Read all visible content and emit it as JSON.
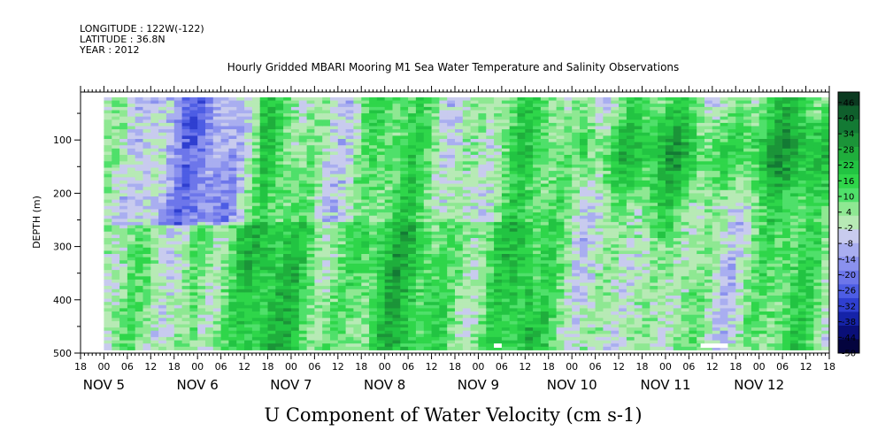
{
  "header": {
    "longitude": "LONGITUDE : 122W(-122)",
    "latitude": "LATITUDE : 36.8N",
    "year": "YEAR : 2012"
  },
  "chart_data": {
    "type": "heatmap",
    "title": "Hourly Gridded MBARI Mooring M1 Sea Water Temperature and Salinity Observations",
    "xlabel": "U Component of Water Velocity (cm s-1)",
    "ylabel": "DEPTH (m)",
    "ylim": [
      500,
      10
    ],
    "y_ticks": [
      100,
      200,
      300,
      400,
      500
    ],
    "x_range_hours": [
      -6,
      186
    ],
    "x_tick_hours": [
      "18",
      "00",
      "06",
      "12",
      "18",
      "00",
      "06",
      "12",
      "18",
      "00",
      "06",
      "12",
      "18",
      "00",
      "06",
      "12",
      "18",
      "00",
      "06",
      "12",
      "18",
      "00",
      "06",
      "12",
      "18",
      "00",
      "06",
      "12",
      "18",
      "00",
      "06",
      "12",
      "18"
    ],
    "x_day_labels": [
      "NOV 5",
      "NOV 6",
      "NOV 7",
      "NOV 8",
      "NOV 9",
      "NOV 10",
      "NOV 11",
      "NOV 12"
    ],
    "data_depth_range": [
      20,
      490
    ],
    "colorbar": {
      "min": -50,
      "max": 50,
      "labels": [
        "46",
        "40",
        "34",
        "28",
        "22",
        "16",
        "10",
        "4",
        "-2",
        "-8",
        "-14",
        "-20",
        "-26",
        "-32",
        "-38",
        "-44",
        "-50"
      ],
      "colors": [
        "#0b3a20",
        "#0f5f2c",
        "#137a34",
        "#1b9438",
        "#1fae3c",
        "#22c442",
        "#2fd64a",
        "#4fe06a",
        "#8ee892",
        "#b7eab5",
        "#c8cbee",
        "#a9aef0",
        "#8a91ee",
        "#6d76ea",
        "#4d5de4",
        "#2f3fd0",
        "#1523a8",
        "#0a0f78",
        "#04043e"
      ]
    }
  }
}
